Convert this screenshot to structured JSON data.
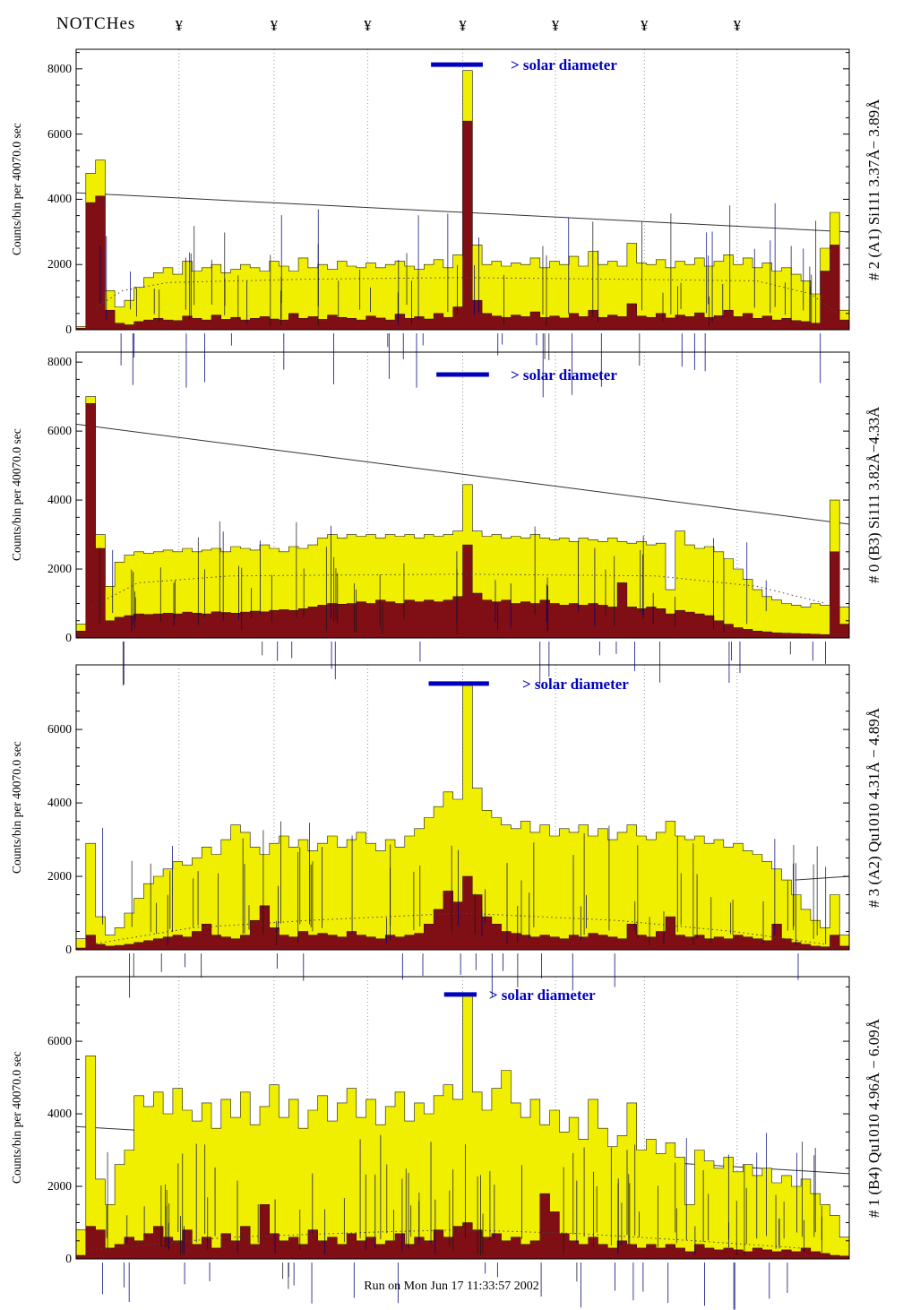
{
  "header": {
    "notches_label": "NOTCHes",
    "notch_symbol": "¥",
    "notch_positions": [
      0.133,
      0.256,
      0.377,
      0.5,
      0.62,
      0.735,
      0.855
    ]
  },
  "footer": {
    "run_label": "Run on Mon Jun 17 11:33:57 2002"
  },
  "colors": {
    "histogram_fill": "#f0ef00",
    "histogram_edge": "#1a1a00",
    "background_fill": "#7f0f14",
    "background_edge": "#2a0005",
    "annotation_blue": "#0000bf",
    "grid": "#8a8a8a",
    "trend": "#333333"
  },
  "chart_data": [
    {
      "type": "bar",
      "style": "step-histogram",
      "title": "# 2 (A1) Si111 3.37Å− 3.89Å",
      "ylabel": "Counts/bin per  40070.0 sec",
      "ylim": [
        0,
        8600
      ],
      "yticks": [
        0,
        2000,
        4000,
        6000,
        8000
      ],
      "annotation": {
        "label": "> solar diameter",
        "bar_start": 0.459,
        "bar_end": 0.526,
        "bar_y": 8130,
        "text_x": 0.562
      },
      "trend_line": [
        [
          0,
          4200
        ],
        [
          1,
          3000
        ]
      ],
      "dotted_curve": [
        [
          0.02,
          600
        ],
        [
          0.06,
          1200
        ],
        [
          0.12,
          1450
        ],
        [
          0.3,
          1550
        ],
        [
          0.5,
          1600
        ],
        [
          0.7,
          1550
        ],
        [
          0.88,
          1500
        ],
        [
          0.95,
          1100
        ],
        [
          0.985,
          500
        ]
      ],
      "series": [
        {
          "name": "total counts",
          "values": [
            100,
            4800,
            5200,
            1200,
            700,
            900,
            1300,
            1600,
            1750,
            1900,
            1700,
            2100,
            1800,
            1900,
            2000,
            1750,
            1850,
            2000,
            1900,
            1800,
            2100,
            1950,
            1800,
            2200,
            1900,
            2000,
            1850,
            2100,
            1950,
            1900,
            2050,
            1900,
            2000,
            2100,
            1950,
            1850,
            2000,
            2150,
            1900,
            2300,
            7950,
            2600,
            2000,
            2100,
            1950,
            2050,
            2000,
            2200,
            1900,
            2100,
            2000,
            2250,
            1950,
            2400,
            2000,
            2100,
            1950,
            2650,
            2050,
            2000,
            2150,
            1900,
            2100,
            2000,
            2200,
            1950,
            2100,
            2300,
            2000,
            2200,
            1900,
            2050,
            1800,
            1900,
            1700,
            1500,
            1100,
            2500,
            3600,
            600
          ]
        },
        {
          "name": "background counts",
          "values": [
            50,
            3900,
            4100,
            600,
            200,
            150,
            250,
            300,
            350,
            300,
            280,
            420,
            350,
            300,
            450,
            320,
            380,
            300,
            350,
            400,
            330,
            300,
            500,
            350,
            400,
            320,
            450,
            380,
            350,
            300,
            420,
            360,
            300,
            480,
            350,
            400,
            330,
            500,
            380,
            700,
            6400,
            900,
            500,
            420,
            380,
            450,
            400,
            550,
            380,
            420,
            360,
            500,
            400,
            600,
            380,
            450,
            400,
            800,
            420,
            380,
            500,
            360,
            450,
            400,
            520,
            380,
            430,
            600,
            400,
            500,
            350,
            420,
            300,
            350,
            280,
            250,
            200,
            1800,
            2600,
            300
          ]
        }
      ]
    },
    {
      "type": "bar",
      "style": "step-histogram",
      "title": "# 0 (B3) Si111 3.82Å−4.33Å",
      "ylabel": "Counts/bin per  40070.0 sec",
      "ylim": [
        0,
        8290
      ],
      "yticks": [
        0,
        2000,
        4000,
        6000,
        8000
      ],
      "annotation": {
        "label": "> solar diameter",
        "bar_start": 0.466,
        "bar_end": 0.534,
        "bar_y": 7640,
        "text_x": 0.562
      },
      "trend_line": [
        [
          0,
          6200
        ],
        [
          1,
          3300
        ]
      ],
      "dotted_curve": [
        [
          0.02,
          900
        ],
        [
          0.08,
          1600
        ],
        [
          0.2,
          1800
        ],
        [
          0.5,
          1850
        ],
        [
          0.75,
          1800
        ],
        [
          0.88,
          1500
        ],
        [
          0.97,
          1000
        ]
      ],
      "series": [
        {
          "name": "total counts",
          "values": [
            400,
            7000,
            3000,
            1500,
            2200,
            2400,
            2500,
            2450,
            2500,
            2550,
            2500,
            2600,
            2500,
            2550,
            2600,
            2500,
            2650,
            2600,
            2550,
            2700,
            2600,
            2500,
            2650,
            2600,
            2700,
            2900,
            3000,
            2900,
            3000,
            2950,
            3000,
            2900,
            3000,
            2950,
            3000,
            2900,
            3000,
            2950,
            3000,
            3100,
            4450,
            3100,
            2950,
            3000,
            2900,
            2950,
            2900,
            3000,
            2900,
            2850,
            2900,
            2800,
            2900,
            2850,
            2800,
            2900,
            2800,
            2750,
            2800,
            2700,
            2750,
            1400,
            3100,
            2700,
            2600,
            2650,
            2500,
            2300,
            2000,
            1700,
            1400,
            1200,
            1100,
            1000,
            950,
            900,
            1000,
            950,
            4000,
            900
          ]
        },
        {
          "name": "background counts",
          "values": [
            200,
            6800,
            2600,
            500,
            600,
            650,
            700,
            680,
            700,
            720,
            700,
            750,
            720,
            700,
            760,
            740,
            720,
            750,
            780,
            760,
            800,
            820,
            800,
            850,
            900,
            950,
            1000,
            980,
            1000,
            1050,
            1000,
            1100,
            1050,
            1000,
            1100,
            1050,
            1100,
            1050,
            1100,
            1200,
            2700,
            1300,
            1100,
            1050,
            1100,
            1000,
            1050,
            1000,
            1100,
            1000,
            950,
            1000,
            950,
            1000,
            950,
            900,
            1600,
            900,
            850,
            900,
            850,
            700,
            800,
            750,
            700,
            650,
            500,
            400,
            300,
            250,
            200,
            180,
            150,
            140,
            130,
            120,
            110,
            100,
            2500,
            400
          ]
        }
      ]
    },
    {
      "type": "bar",
      "style": "step-histogram",
      "title": "# 3 (A2) Qu1010 4.31Å − 4.89Å",
      "ylabel": "Counts/bin per  40070.0 sec",
      "ylim": [
        0,
        7760
      ],
      "yticks": [
        0,
        2000,
        4000,
        6000
      ],
      "annotation": {
        "label": "> solar diameter",
        "bar_start": 0.456,
        "bar_end": 0.534,
        "bar_y": 7250,
        "text_x": 0.577
      },
      "trend_line": [
        [
          0.93,
          1900
        ],
        [
          1,
          2000
        ]
      ],
      "dotted_curve": [
        [
          0.02,
          150
        ],
        [
          0.15,
          600
        ],
        [
          0.3,
          800
        ],
        [
          0.5,
          1000
        ],
        [
          0.7,
          800
        ],
        [
          0.85,
          500
        ],
        [
          0.97,
          150
        ]
      ],
      "series": [
        {
          "name": "total counts",
          "values": [
            300,
            2900,
            900,
            400,
            600,
            1000,
            1400,
            1800,
            2000,
            2200,
            2400,
            2300,
            2500,
            2800,
            2600,
            3000,
            3400,
            3200,
            2800,
            2600,
            2900,
            3100,
            2800,
            3000,
            2700,
            2900,
            3100,
            2800,
            3000,
            3200,
            2900,
            2700,
            3000,
            2800,
            3100,
            3300,
            3600,
            3900,
            4300,
            4100,
            7200,
            4400,
            3800,
            3600,
            3400,
            3300,
            3500,
            3200,
            3400,
            3100,
            3300,
            3200,
            3400,
            3100,
            3300,
            3000,
            3200,
            3400,
            3100,
            3000,
            3200,
            3500,
            3100,
            3000,
            3100,
            2900,
            3000,
            2800,
            2900,
            2700,
            2600,
            2400,
            2200,
            1900,
            1500,
            1100,
            800,
            600,
            1500,
            400
          ]
        },
        {
          "name": "background counts",
          "values": [
            50,
            400,
            150,
            100,
            120,
            150,
            200,
            250,
            300,
            350,
            400,
            350,
            500,
            700,
            400,
            350,
            300,
            400,
            800,
            1200,
            600,
            400,
            350,
            500,
            400,
            450,
            400,
            350,
            500,
            400,
            350,
            300,
            400,
            350,
            400,
            450,
            700,
            1100,
            1600,
            1300,
            2000,
            1500,
            900,
            700,
            500,
            450,
            400,
            350,
            400,
            350,
            300,
            400,
            350,
            450,
            400,
            350,
            300,
            700,
            400,
            350,
            500,
            900,
            400,
            350,
            400,
            300,
            350,
            300,
            400,
            350,
            300,
            250,
            700,
            300,
            200,
            150,
            100,
            80,
            400,
            100
          ]
        }
      ]
    },
    {
      "type": "bar",
      "style": "step-histogram",
      "title": "# 1 (B4) Qu1010 4.96Å − 6.09Å",
      "ylabel": "Counts/bin per  40070.0 sec",
      "ylim": [
        0,
        7780
      ],
      "yticks": [
        0,
        2000,
        4000,
        6000
      ],
      "annotation": {
        "label": "> solar diameter",
        "bar_start": 0.476,
        "bar_end": 0.518,
        "bar_y": 7290,
        "text_x": 0.534
      },
      "trend_line": [
        [
          0,
          3650
        ],
        [
          1,
          2350
        ]
      ],
      "dotted_curve": [
        [
          0.02,
          250
        ],
        [
          0.2,
          600
        ],
        [
          0.4,
          750
        ],
        [
          0.5,
          800
        ],
        [
          0.65,
          700
        ],
        [
          0.8,
          500
        ],
        [
          0.95,
          280
        ]
      ],
      "series": [
        {
          "name": "total counts",
          "values": [
            800,
            5600,
            2200,
            1500,
            2600,
            3000,
            4500,
            4200,
            4600,
            4000,
            4700,
            4100,
            3800,
            4300,
            3600,
            4400,
            3900,
            4600,
            3700,
            4200,
            4800,
            3900,
            4400,
            3600,
            4100,
            4500,
            3800,
            4300,
            4700,
            3900,
            4400,
            3700,
            4200,
            4600,
            3800,
            4300,
            4000,
            4500,
            4800,
            4400,
            7300,
            4600,
            4100,
            4700,
            5200,
            4300,
            3900,
            4400,
            3700,
            4100,
            3500,
            3900,
            3300,
            4400,
            3600,
            3100,
            3400,
            4300,
            3000,
            3300,
            2900,
            3200,
            2800,
            1500,
            3000,
            2700,
            2500,
            2800,
            2400,
            2600,
            2300,
            2500,
            2100,
            2300,
            2000,
            2200,
            1800,
            1500,
            1200,
            600
          ]
        },
        {
          "name": "background counts",
          "values": [
            100,
            900,
            800,
            300,
            400,
            600,
            500,
            700,
            900,
            600,
            500,
            800,
            400,
            600,
            300,
            700,
            500,
            900,
            400,
            1500,
            700,
            500,
            600,
            400,
            800,
            500,
            600,
            400,
            700,
            500,
            600,
            400,
            500,
            700,
            400,
            600,
            500,
            800,
            600,
            900,
            1000,
            800,
            600,
            700,
            500,
            600,
            400,
            500,
            1800,
            1300,
            700,
            500,
            400,
            600,
            400,
            300,
            500,
            400,
            300,
            400,
            300,
            400,
            300,
            200,
            400,
            300,
            250,
            300,
            250,
            200,
            300,
            250,
            200,
            250,
            200,
            300,
            200,
            150,
            100,
            80
          ]
        }
      ]
    }
  ]
}
